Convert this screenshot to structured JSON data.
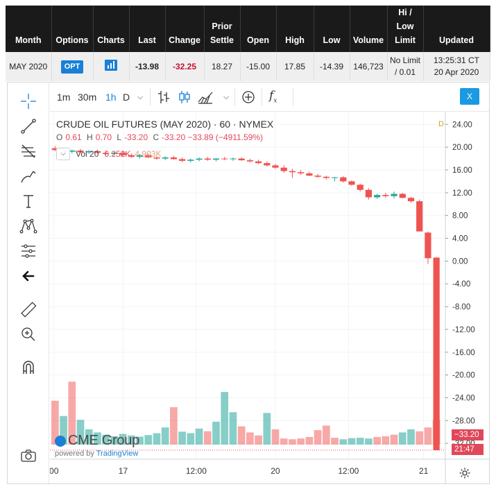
{
  "quote_table": {
    "headers": {
      "month": "Month",
      "options": "Options",
      "charts": "Charts",
      "last": "Last",
      "change": "Change",
      "prior_settle_1": "Prior",
      "prior_settle_2": "Settle",
      "open": "Open",
      "high": "High",
      "low": "Low",
      "volume": "Volume",
      "limit_1": "Hi /",
      "limit_2": "Low",
      "limit_3": "Limit",
      "updated": "Updated"
    },
    "row": {
      "month": "MAY 2020",
      "options_badge": "OPT",
      "last": "-13.98",
      "change": "-32.25",
      "prior_settle": "18.27",
      "open": "-15.00",
      "high": "17.85",
      "low": "-14.39",
      "volume": "146,723",
      "limit_1": "No Limit",
      "limit_2": "/ 0.01",
      "updated_1": "13:25:31 CT",
      "updated_2": "20 Apr 2020"
    },
    "colors": {
      "change": "#c8102e",
      "badge": "#1a7fd6"
    }
  },
  "top_toolbar": {
    "intervals": [
      "1m",
      "30m",
      "1h",
      "D"
    ],
    "active_interval": "1h",
    "close_label": "X"
  },
  "left_toolbar": {
    "tools": [
      "crosshair-icon",
      "trendline-icon",
      "fib-icon",
      "brush-icon",
      "text-icon",
      "pattern-icon",
      "forecast-icon",
      "back-arrow-icon",
      "ruler-icon",
      "zoom-icon",
      "magnet-icon",
      "camera-icon"
    ]
  },
  "legend": {
    "title": "CRUDE OIL FUTURES (MAY 2020) · 60 · NYMEX",
    "o_key": "O",
    "o_val": "0.61",
    "h_key": "H",
    "h_val": "0.70",
    "l_key": "L",
    "l_val": "-33.20",
    "c_key": "C",
    "c_val": "-33.20 −33.89 (−4911.59%)",
    "vol_label": "Vol 20",
    "vol_1": "6.252K",
    "vol_2": "4.903K",
    "d_flag": "D"
  },
  "watermark": {
    "brand": "CME Group",
    "powered_prefix": "powered by",
    "powered_brand": "TradingView"
  },
  "price_badges": {
    "last_price": "−33.20",
    "countdown": "21:47"
  },
  "chart_data": {
    "type": "candlestick",
    "y_ticks": [
      "24.00",
      "20.00",
      "16.00",
      "12.00",
      "8.00",
      "4.00",
      "0.00",
      "-4.00",
      "-8.00",
      "-12.00",
      "-16.00",
      "-20.00",
      "-24.00",
      "-28.00",
      "-32.00"
    ],
    "ylim": [
      -33.2,
      25.5
    ],
    "x_ticks": [
      {
        "label": "00",
        "pos": 0.01
      },
      {
        "label": "17",
        "pos": 0.185
      },
      {
        "label": "12:00",
        "pos": 0.37
      },
      {
        "label": "20",
        "pos": 0.57
      },
      {
        "label": "12:00",
        "pos": 0.755
      },
      {
        "label": "21",
        "pos": 0.945
      }
    ],
    "up_color": "#26a69a",
    "down_color": "#ef5350",
    "candles": [
      {
        "o": 19.8,
        "h": 20.2,
        "l": 19.3,
        "c": 19.5
      },
      {
        "o": 19.5,
        "h": 19.8,
        "l": 19.0,
        "c": 19.2
      },
      {
        "o": 19.2,
        "h": 19.6,
        "l": 18.9,
        "c": 19.4
      },
      {
        "o": 19.4,
        "h": 19.7,
        "l": 19.0,
        "c": 19.1
      },
      {
        "o": 19.1,
        "h": 19.5,
        "l": 18.8,
        "c": 19.3
      },
      {
        "o": 19.3,
        "h": 19.6,
        "l": 18.9,
        "c": 19.0
      },
      {
        "o": 19.0,
        "h": 19.4,
        "l": 18.6,
        "c": 18.8
      },
      {
        "o": 18.8,
        "h": 19.2,
        "l": 18.5,
        "c": 19.0
      },
      {
        "o": 19.0,
        "h": 19.3,
        "l": 18.4,
        "c": 18.6
      },
      {
        "o": 18.6,
        "h": 18.9,
        "l": 18.1,
        "c": 18.3
      },
      {
        "o": 18.3,
        "h": 18.8,
        "l": 18.0,
        "c": 18.6
      },
      {
        "o": 18.6,
        "h": 18.9,
        "l": 18.1,
        "c": 18.2
      },
      {
        "o": 18.2,
        "h": 18.5,
        "l": 17.8,
        "c": 18.0
      },
      {
        "o": 18.0,
        "h": 18.4,
        "l": 17.7,
        "c": 18.2
      },
      {
        "o": 18.2,
        "h": 18.5,
        "l": 17.8,
        "c": 17.9
      },
      {
        "o": 17.9,
        "h": 18.2,
        "l": 17.4,
        "c": 17.6
      },
      {
        "o": 17.6,
        "h": 18.0,
        "l": 17.3,
        "c": 17.8
      },
      {
        "o": 17.8,
        "h": 18.2,
        "l": 17.5,
        "c": 18.0
      },
      {
        "o": 18.0,
        "h": 18.3,
        "l": 17.6,
        "c": 17.8
      },
      {
        "o": 17.8,
        "h": 18.1,
        "l": 17.5,
        "c": 18.0
      },
      {
        "o": 18.0,
        "h": 18.3,
        "l": 17.7,
        "c": 17.9
      },
      {
        "o": 17.9,
        "h": 18.2,
        "l": 17.6,
        "c": 18.0
      },
      {
        "o": 18.0,
        "h": 18.2,
        "l": 17.6,
        "c": 17.7
      },
      {
        "o": 17.7,
        "h": 18.0,
        "l": 17.3,
        "c": 17.5
      },
      {
        "o": 17.5,
        "h": 17.8,
        "l": 17.0,
        "c": 17.2
      },
      {
        "o": 17.2,
        "h": 17.5,
        "l": 16.6,
        "c": 16.8
      },
      {
        "o": 16.8,
        "h": 17.1,
        "l": 16.2,
        "c": 16.4
      },
      {
        "o": 16.4,
        "h": 16.8,
        "l": 15.5,
        "c": 15.8
      },
      {
        "o": 15.8,
        "h": 16.2,
        "l": 14.6,
        "c": 15.6
      },
      {
        "o": 15.6,
        "h": 16.0,
        "l": 15.1,
        "c": 15.4
      },
      {
        "o": 15.4,
        "h": 15.7,
        "l": 14.9,
        "c": 15.0
      },
      {
        "o": 15.0,
        "h": 15.3,
        "l": 14.6,
        "c": 14.8
      },
      {
        "o": 14.8,
        "h": 15.0,
        "l": 14.3,
        "c": 14.6
      },
      {
        "o": 14.6,
        "h": 14.8,
        "l": 14.0,
        "c": 14.7
      },
      {
        "o": 14.7,
        "h": 14.9,
        "l": 13.8,
        "c": 14.0
      },
      {
        "o": 14.0,
        "h": 14.2,
        "l": 13.2,
        "c": 13.4
      },
      {
        "o": 13.4,
        "h": 13.6,
        "l": 12.2,
        "c": 12.5
      },
      {
        "o": 12.5,
        "h": 12.8,
        "l": 10.8,
        "c": 11.2
      },
      {
        "o": 11.2,
        "h": 11.8,
        "l": 10.9,
        "c": 11.6
      },
      {
        "o": 11.6,
        "h": 12.0,
        "l": 11.1,
        "c": 11.4
      },
      {
        "o": 11.4,
        "h": 12.2,
        "l": 11.0,
        "c": 11.8
      },
      {
        "o": 11.8,
        "h": 12.0,
        "l": 11.0,
        "c": 11.1
      },
      {
        "o": 11.1,
        "h": 11.3,
        "l": 10.2,
        "c": 10.5
      },
      {
        "o": 10.5,
        "h": 10.8,
        "l": 5.5,
        "c": 5.2
      },
      {
        "o": 5.0,
        "h": 5.2,
        "l": -0.5,
        "c": 0.5
      },
      {
        "o": 0.61,
        "h": 0.7,
        "l": -33.2,
        "c": -33.2
      }
    ],
    "volumes": [
      {
        "v": 11.5,
        "up": false
      },
      {
        "v": 7.5,
        "up": true
      },
      {
        "v": 16.5,
        "up": false
      },
      {
        "v": 6.5,
        "up": true
      },
      {
        "v": 4.0,
        "up": true
      },
      {
        "v": 3.2,
        "up": true
      },
      {
        "v": 2.6,
        "up": true
      },
      {
        "v": 2.2,
        "up": true
      },
      {
        "v": 2.8,
        "up": true
      },
      {
        "v": 2.4,
        "up": true
      },
      {
        "v": 2.1,
        "up": true
      },
      {
        "v": 2.5,
        "up": true
      },
      {
        "v": 3.0,
        "up": true
      },
      {
        "v": 4.5,
        "up": true
      },
      {
        "v": 9.8,
        "up": false
      },
      {
        "v": 3.4,
        "up": true
      },
      {
        "v": 3.0,
        "up": true
      },
      {
        "v": 4.2,
        "up": true
      },
      {
        "v": 3.5,
        "up": false
      },
      {
        "v": 6.0,
        "up": true
      },
      {
        "v": 13.8,
        "up": true
      },
      {
        "v": 8.5,
        "up": true
      },
      {
        "v": 4.8,
        "up": false
      },
      {
        "v": 3.2,
        "up": false
      },
      {
        "v": 2.4,
        "up": false
      },
      {
        "v": 8.3,
        "up": true
      },
      {
        "v": 4.0,
        "up": false
      },
      {
        "v": 1.6,
        "up": false
      },
      {
        "v": 1.4,
        "up": false
      },
      {
        "v": 1.6,
        "up": false
      },
      {
        "v": 2.0,
        "up": false
      },
      {
        "v": 3.8,
        "up": false
      },
      {
        "v": 5.0,
        "up": false
      },
      {
        "v": 1.8,
        "up": false
      },
      {
        "v": 1.4,
        "up": true
      },
      {
        "v": 1.7,
        "up": true
      },
      {
        "v": 1.8,
        "up": true
      },
      {
        "v": 1.6,
        "up": true
      },
      {
        "v": 2.0,
        "up": false
      },
      {
        "v": 2.2,
        "up": false
      },
      {
        "v": 2.6,
        "up": false
      },
      {
        "v": 3.2,
        "up": true
      },
      {
        "v": 4.0,
        "up": true
      },
      {
        "v": 3.5,
        "up": false
      },
      {
        "v": 4.5,
        "up": false
      },
      {
        "v": 6.5,
        "up": false
      }
    ],
    "vol_max": 20,
    "last_price": -33.2
  }
}
